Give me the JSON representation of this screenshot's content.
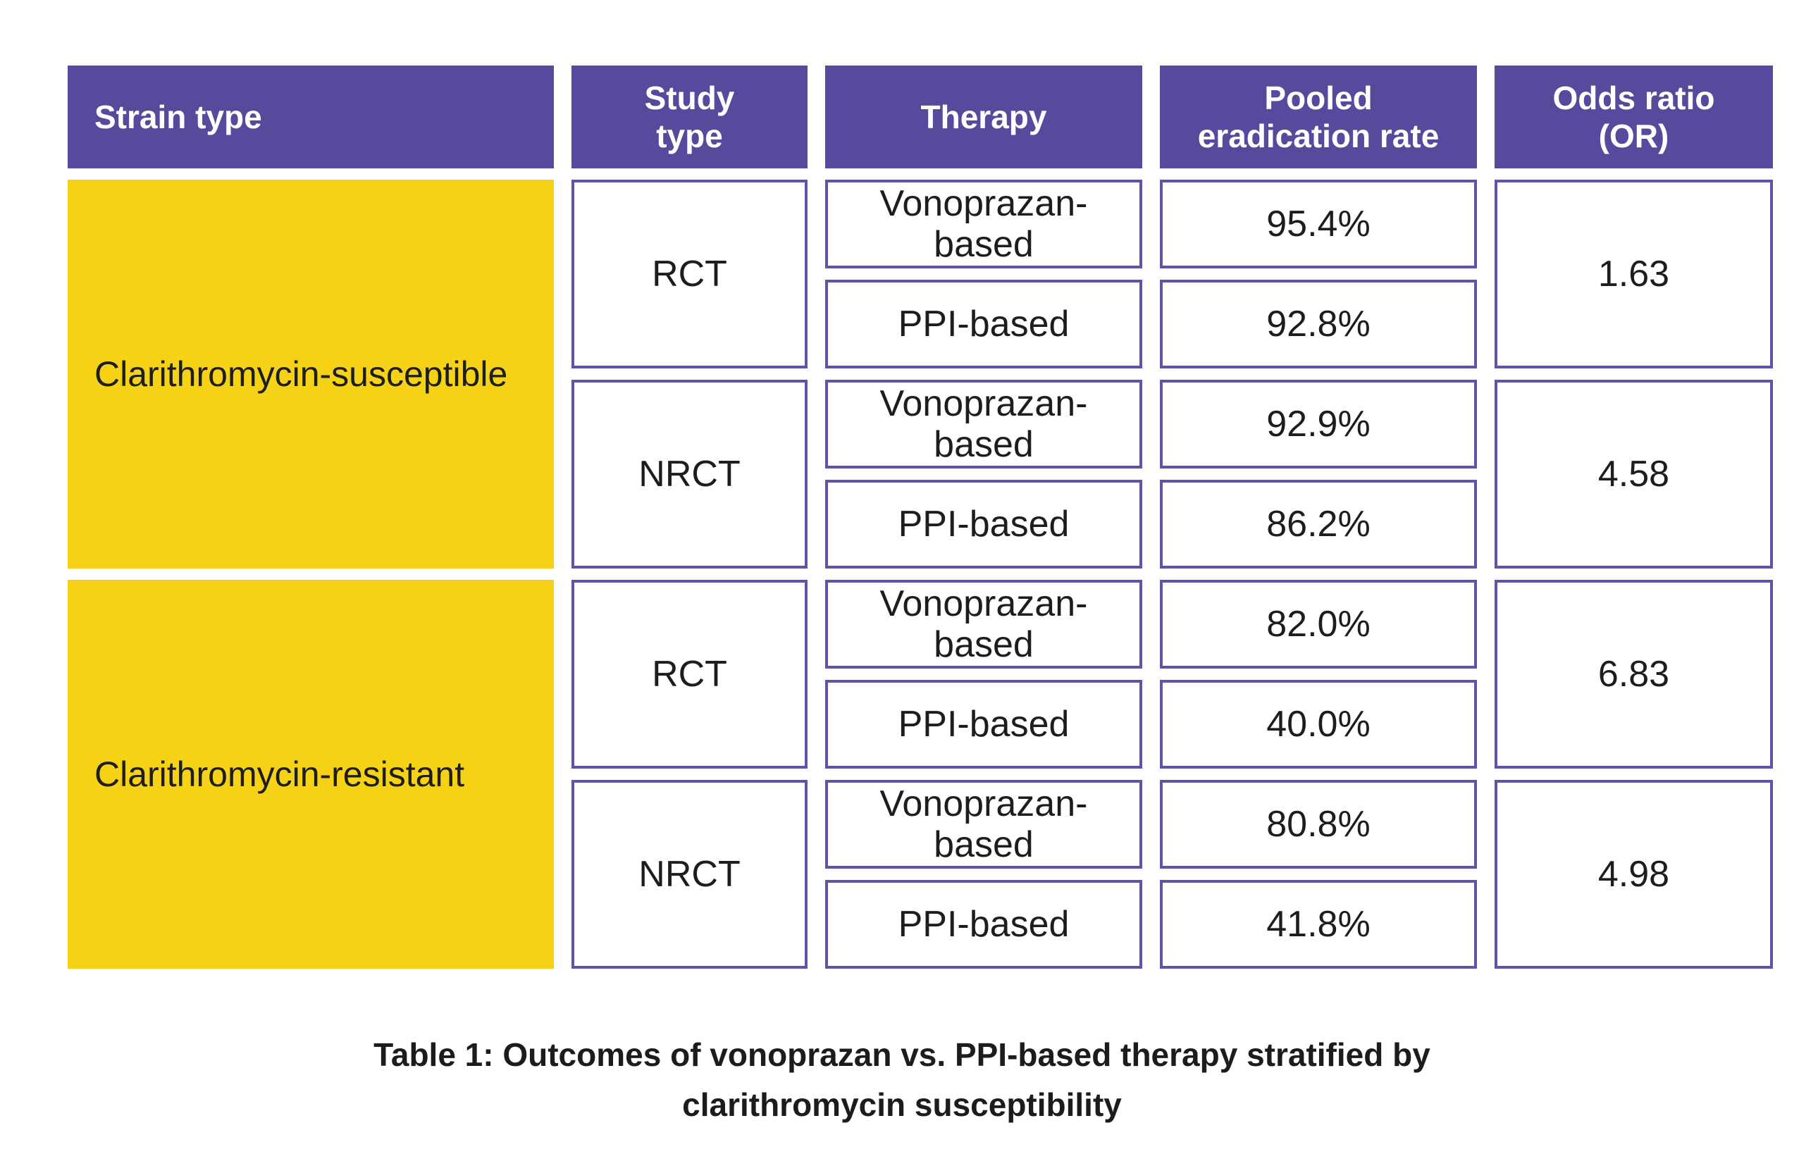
{
  "colors": {
    "header_purple": "#564a9d",
    "border_purple": "#5e55a8",
    "strain_yellow": "#f5d216",
    "text_dark": "#1d1d1b",
    "header_text": "#ffffff"
  },
  "header": {
    "study_lines": [
      "Study",
      "type"
    ],
    "rate_lines": [
      "Pooled",
      "eradication rate"
    ],
    "odds_lines": [
      "Odds ratio",
      "(OR)"
    ]
  },
  "caption_lines": [
    "Table 1: Outcomes of vonoprazan vs. PPI-based therapy stratified by",
    "clarithromycin susceptibility"
  ],
  "chart_data": {
    "type": "table",
    "title": "Table 1: Outcomes of vonoprazan vs. PPI-based therapy stratified by clarithromycin susceptibility",
    "columns": [
      "Strain type",
      "Study type",
      "Therapy",
      "Pooled eradication rate",
      "Odds ratio (OR)"
    ],
    "rows": [
      [
        "Clarithromycin-susceptible",
        "RCT",
        "Vonoprazan-based",
        "95.4%",
        "1.63"
      ],
      [
        "Clarithromycin-susceptible",
        "RCT",
        "PPI-based",
        "92.8%",
        "1.63"
      ],
      [
        "Clarithromycin-susceptible",
        "NRCT",
        "Vonoprazan-based",
        "92.9%",
        "4.58"
      ],
      [
        "Clarithromycin-susceptible",
        "NRCT",
        "PPI-based",
        "86.2%",
        "4.58"
      ],
      [
        "Clarithromycin-resistant",
        "RCT",
        "Vonoprazan-based",
        "82.0%",
        "6.83"
      ],
      [
        "Clarithromycin-resistant",
        "RCT",
        "PPI-based",
        "40.0%",
        "6.83"
      ],
      [
        "Clarithromycin-resistant",
        "NRCT",
        "Vonoprazan-based",
        "80.8%",
        "4.98"
      ],
      [
        "Clarithromycin-resistant",
        "NRCT",
        "PPI-based",
        "41.8%",
        "4.98"
      ]
    ],
    "layout": {
      "strain_col_style": "yellow fill, spans 4 rows per strain",
      "study_and_or_cells_span": 2,
      "grid": "white cells with purple borders"
    }
  }
}
